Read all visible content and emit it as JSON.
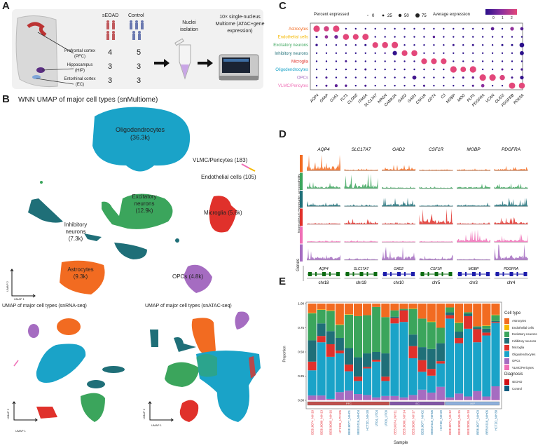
{
  "panels": {
    "a": "A",
    "b": "B",
    "c": "C",
    "d": "D",
    "e": "E"
  },
  "panelA": {
    "groups": [
      "sEOAD",
      "Control"
    ],
    "regions": [
      {
        "name": "Prefrontal cortex",
        "abbr": "(PFC)",
        "seoad": "4",
        "control": "5"
      },
      {
        "name": "Hippocampus",
        "abbr": "(HIP)",
        "seoad": "3",
        "control": "3"
      },
      {
        "name": "Entorhinal cortex",
        "abbr": "(EC)",
        "seoad": "3",
        "control": "3"
      }
    ],
    "step1": [
      "Nuclei",
      "isolation"
    ],
    "step2": [
      "10× single-nucleus",
      "Multiome (ATAC+gene",
      "expression)"
    ],
    "colors": {
      "seoad": "#c0595c",
      "control": "#6a78b0"
    }
  },
  "panelB": {
    "title": "WNN UMAP of major cell types (snMultiome)",
    "labels": {
      "oligo": [
        "Oligodendrocytes",
        "(36.3k)"
      ],
      "vlmc": "VLMC/Pericytes (183)",
      "endo": "Endothelial cells (105)",
      "exc": [
        "Excitatory",
        "neurons",
        "(12.9k)"
      ],
      "micro": "Microglia (5.6k)",
      "inh": [
        "Inhibitory",
        "neurons",
        "(7.3k)"
      ],
      "astro": [
        "Astrocytes",
        "(9.3k)"
      ],
      "opc": "OPCs (4.8k)"
    },
    "rna_title": "UMAP of major cell types (snRNA-seq)",
    "atac_title": "UMAP of major cell types (snATAC-seq)",
    "axis_x": "UMAP 1",
    "axis_y": "UMAP 2"
  },
  "cell_types": [
    {
      "name": "Astrocytes",
      "color": "#F26B21"
    },
    {
      "name": "Endothelial cells",
      "color": "#F5B800"
    },
    {
      "name": "Excitatory neurons",
      "color": "#3BA55C"
    },
    {
      "name": "Inhibitory neurons",
      "color": "#1F6F78"
    },
    {
      "name": "Microglia",
      "color": "#E0312B"
    },
    {
      "name": "Oligodendrocytes",
      "color": "#1AA3C8"
    },
    {
      "name": "OPCs",
      "color": "#A56CC1"
    },
    {
      "name": "VLMC/Pericytes",
      "color": "#EF6FB6"
    }
  ],
  "chart_data": [
    {
      "type": "dotplot",
      "panel": "C",
      "legend_size_title": "Percent expressed",
      "legend_size_values": [
        "0",
        "25",
        "50",
        "75"
      ],
      "legend_color_title": "Average expression",
      "legend_color_ticks": [
        "0",
        "1",
        "2"
      ],
      "color_range": [
        "#2a0f8a",
        "#e3477a"
      ],
      "rows": [
        "Astrocytes",
        "Endothelial cells",
        "Excitatory neurons",
        "Inhibitory neurons",
        "Microglia",
        "Oligodendrocytes",
        "OPCs",
        "VLMC/Pericytes"
      ],
      "genes": [
        "AQP4",
        "GFAP",
        "GJA1",
        "FLT1",
        "CLDN5",
        "ITM2A",
        "SLC17A7",
        "NRGN",
        "CAMK2A",
        "GAD2",
        "GAD1",
        "CSF1R",
        "CD74",
        "C3",
        "MOBP",
        "MOG",
        "PLP1",
        "PDGFRA",
        "VCAN",
        "OLIG2",
        "PDGFRB",
        "PDE5A"
      ],
      "pct": [
        [
          75,
          50,
          75,
          5,
          5,
          5,
          5,
          5,
          5,
          5,
          5,
          5,
          5,
          5,
          5,
          5,
          5,
          5,
          20,
          5,
          25,
          20
        ],
        [
          8,
          20,
          25,
          65,
          60,
          70,
          5,
          5,
          5,
          5,
          5,
          5,
          10,
          5,
          5,
          5,
          5,
          5,
          5,
          5,
          5,
          5
        ],
        [
          10,
          5,
          5,
          5,
          5,
          8,
          60,
          65,
          75,
          5,
          5,
          5,
          5,
          5,
          8,
          5,
          8,
          5,
          5,
          8,
          8,
          40
        ],
        [
          5,
          5,
          5,
          5,
          5,
          5,
          5,
          5,
          35,
          60,
          65,
          5,
          5,
          5,
          5,
          5,
          5,
          5,
          5,
          5,
          5,
          30
        ],
        [
          5,
          5,
          5,
          8,
          5,
          5,
          5,
          5,
          5,
          5,
          5,
          60,
          60,
          60,
          5,
          5,
          5,
          5,
          5,
          5,
          5,
          5
        ],
        [
          5,
          5,
          5,
          5,
          5,
          8,
          5,
          5,
          5,
          5,
          5,
          5,
          5,
          5,
          75,
          55,
          75,
          5,
          5,
          8,
          5,
          10
        ],
        [
          5,
          8,
          5,
          5,
          5,
          5,
          5,
          5,
          5,
          5,
          30,
          5,
          5,
          5,
          5,
          8,
          10,
          75,
          75,
          50,
          8,
          25
        ],
        [
          5,
          8,
          15,
          10,
          5,
          8,
          5,
          5,
          5,
          5,
          5,
          8,
          5,
          5,
          5,
          5,
          8,
          20,
          5,
          5,
          70,
          65
        ]
      ],
      "avg_exp": [
        [
          2.2,
          2.0,
          2.2,
          0,
          0,
          0,
          0,
          0,
          0,
          0,
          0,
          0,
          0,
          0,
          0,
          0,
          0,
          0,
          0.6,
          0,
          1.2,
          0.5
        ],
        [
          0,
          1.3,
          0.8,
          2.2,
          2.2,
          2.2,
          0,
          0,
          0,
          0,
          0,
          0,
          0.5,
          0,
          0,
          0,
          0,
          0,
          0,
          0,
          0,
          0
        ],
        [
          0.2,
          0,
          0,
          0,
          0,
          0,
          2.2,
          2.2,
          2.2,
          0,
          0,
          0,
          0,
          0,
          0.2,
          0,
          0.2,
          0,
          0,
          0,
          0,
          0
        ],
        [
          0,
          0,
          0,
          0,
          0,
          0,
          0,
          0.2,
          0.1,
          2.2,
          2.2,
          0,
          0,
          0,
          0,
          0,
          0,
          0,
          0,
          0,
          0,
          0
        ],
        [
          0,
          0,
          0,
          0.3,
          0,
          0,
          0,
          0,
          0,
          0,
          0,
          2.2,
          2.2,
          2.2,
          0,
          0,
          0,
          0,
          0,
          0,
          0,
          0
        ],
        [
          0,
          0,
          0,
          0,
          0,
          0.2,
          0,
          0,
          0,
          0,
          0,
          0,
          0,
          0,
          2.2,
          2.2,
          2.2,
          0,
          0,
          0.5,
          0,
          0.3
        ],
        [
          0,
          0.3,
          0,
          0,
          0,
          0,
          0,
          0,
          0,
          0,
          0.3,
          0,
          0,
          0,
          0,
          0.3,
          0.5,
          2.2,
          2.2,
          2.1,
          0.3,
          0.1
        ],
        [
          0,
          0.4,
          0.6,
          0.5,
          0,
          0.3,
          0,
          0,
          0,
          0,
          0,
          0.3,
          0,
          0,
          0,
          0,
          0.4,
          1.1,
          0,
          0,
          2.2,
          2.2
        ]
      ]
    },
    {
      "type": "track",
      "panel": "D",
      "ylabel": "Normalized chromatin accessibility",
      "genes_label": "Genes",
      "genes": [
        "AQP4",
        "SLC17A7",
        "GAD2",
        "CSF1R",
        "MOBP",
        "PDGFRA"
      ],
      "chromosomes": [
        "chr18",
        "chr19",
        "chr10",
        "chr5",
        "chr3",
        "chr4"
      ],
      "gene_model_colors": [
        "#0b6b12",
        "#0b6b12",
        "#1d1dab",
        "#0b6b12",
        "#1d1dab",
        "#1d1dab"
      ],
      "track_cell_types": [
        "Astrocytes",
        "Excitatory neurons",
        "Inhibitory neurons",
        "Microglia",
        "Oligodendrocytes",
        "OPCs"
      ],
      "track_colors": [
        "#F26B21",
        "#3BA55C",
        "#1F6F78",
        "#E0312B",
        "#EF6FB6",
        "#A56CC1"
      ],
      "signal_level": [
        [
          1.0,
          0.1,
          0.4,
          0.1,
          0.1,
          0.3
        ],
        [
          0.4,
          0.9,
          0.1,
          0.1,
          0.3,
          0.3
        ],
        [
          0.4,
          0.1,
          0.6,
          0.1,
          0.2,
          0.5
        ],
        [
          0.1,
          0.3,
          0.1,
          0.9,
          0.1,
          0.4
        ],
        [
          0.1,
          0.1,
          0.05,
          0.05,
          0.7,
          0.5
        ],
        [
          0.7,
          0.1,
          0.8,
          0.3,
          0.1,
          1.0
        ]
      ]
    },
    {
      "type": "bar",
      "stacked": true,
      "panel": "E",
      "xlabel": "Sample",
      "ylabel": "Proportion",
      "ylim": [
        0,
        1
      ],
      "yticks": [
        "0.00",
        "0.25",
        "0.50",
        "0.75",
        "1.00"
      ],
      "legend_title": "Cell type",
      "legend_position": "right",
      "diagnosis_title": "Diagnosis",
      "diagnosis": [
        {
          "name": "sEOAD",
          "color": "#d10f14"
        },
        {
          "name": "Control",
          "color": "#0b5a7e"
        }
      ],
      "label_colors": {
        "sEOAD": "#E8414A",
        "Control": "#2B7BA8"
      },
      "regions": [
        {
          "name": "PFC",
          "count": 9,
          "color": "#c0504d"
        },
        {
          "name": "EC",
          "count": 6,
          "color": "#8256a6"
        },
        {
          "name": "HIP",
          "count": 6,
          "color": "#8fb0dc"
        }
      ],
      "categories": [
        "BEB18074_NIH10",
        "BEB18080_NIH13",
        "BEB20005_NIH16",
        "UT2106_UT2105",
        "BEB18077_NIH01",
        "BEB19116_NIH04",
        "HCTZD_NIH28",
        "UT04_UT04",
        "UT09_UT09",
        "BEB18074_NIH11",
        "BEB18080_NIH14",
        "BEB20005_NIH17",
        "BEB18077_NIH02",
        "BEB19116_NIH05",
        "HCTZD_NIH29",
        "BEB18074_NIH12",
        "BEB18080_NIH15",
        "BEB20005_NIH18",
        "BEB18077_NIH03",
        "BEB19116_NIH06",
        "HCTZD_NIH30"
      ],
      "sample_diagnosis": [
        "sEOAD",
        "sEOAD",
        "sEOAD",
        "sEOAD",
        "Control",
        "Control",
        "Control",
        "Control",
        "Control",
        "sEOAD",
        "sEOAD",
        "sEOAD",
        "Control",
        "Control",
        "Control",
        "sEOAD",
        "sEOAD",
        "sEOAD",
        "Control",
        "Control",
        "Control"
      ],
      "series": [
        {
          "name": "VLMC/Pericytes",
          "values": [
            0.005,
            0.005,
            0.005,
            0.005,
            0.005,
            0.005,
            0.005,
            0.005,
            0.005,
            0.005,
            0.005,
            0.005,
            0.005,
            0.005,
            0.005,
            0.005,
            0.005,
            0.005,
            0.005,
            0.005,
            0.005
          ]
        },
        {
          "name": "OPCs",
          "values": [
            0.045,
            0.045,
            0.01,
            0.08,
            0.095,
            0.06,
            0.05,
            0.025,
            0.04,
            0.04,
            0.025,
            0.05,
            0.105,
            0.075,
            0.135,
            0.025,
            0.065,
            0.035,
            0.09,
            0.035,
            0.14
          ]
        },
        {
          "name": "Oligodendrocytes",
          "values": [
            0.26,
            0.55,
            0.435,
            0.4,
            0.2,
            0.135,
            0.275,
            0.37,
            0.155,
            0.75,
            0.78,
            0.38,
            0.185,
            0.175,
            0.24,
            0.815,
            0.52,
            0.7,
            0.505,
            0.63,
            0.655
          ]
        },
        {
          "name": "Microglia",
          "values": [
            0.09,
            0.065,
            0.13,
            0.03,
            0.07,
            0.045,
            0.015,
            0.02,
            0.045,
            0.055,
            0.12,
            0.125,
            0.12,
            0.07,
            0.025,
            0.035,
            0.055,
            0.13,
            0.135,
            0.03,
            0.01
          ]
        },
        {
          "name": "Inhibitory neurons",
          "values": [
            0.22,
            0.13,
            0.135,
            0.13,
            0.17,
            0.2,
            0.14,
            0.08,
            0.24,
            0.015,
            0.005,
            0.12,
            0.135,
            0.205,
            0.185,
            0.03,
            0.065,
            0.025,
            0.02,
            0.04,
            0.01
          ]
        },
        {
          "name": "Excitatory neurons",
          "values": [
            0.28,
            0.14,
            0.21,
            0.135,
            0.345,
            0.425,
            0.395,
            0.465,
            0.375,
            0.065,
            0.01,
            0.265,
            0.295,
            0.28,
            0.16,
            0.05,
            0.09,
            0.015,
            0.01,
            0.03,
            0.06
          ]
        },
        {
          "name": "Endothelial cells",
          "values": [
            0.005,
            0.005,
            0.005,
            0.005,
            0.005,
            0,
            0,
            0,
            0,
            0,
            0,
            0.005,
            0,
            0.005,
            0,
            0,
            0.005,
            0,
            0,
            0.005,
            0.005
          ]
        },
        {
          "name": "Astrocytes",
          "values": [
            0.095,
            0.06,
            0.07,
            0.215,
            0.11,
            0.13,
            0.12,
            0.035,
            0.14,
            0.07,
            0.055,
            0.05,
            0.155,
            0.185,
            0.25,
            0.04,
            0.195,
            0.09,
            0.235,
            0.225,
            0.115
          ]
        }
      ]
    }
  ]
}
